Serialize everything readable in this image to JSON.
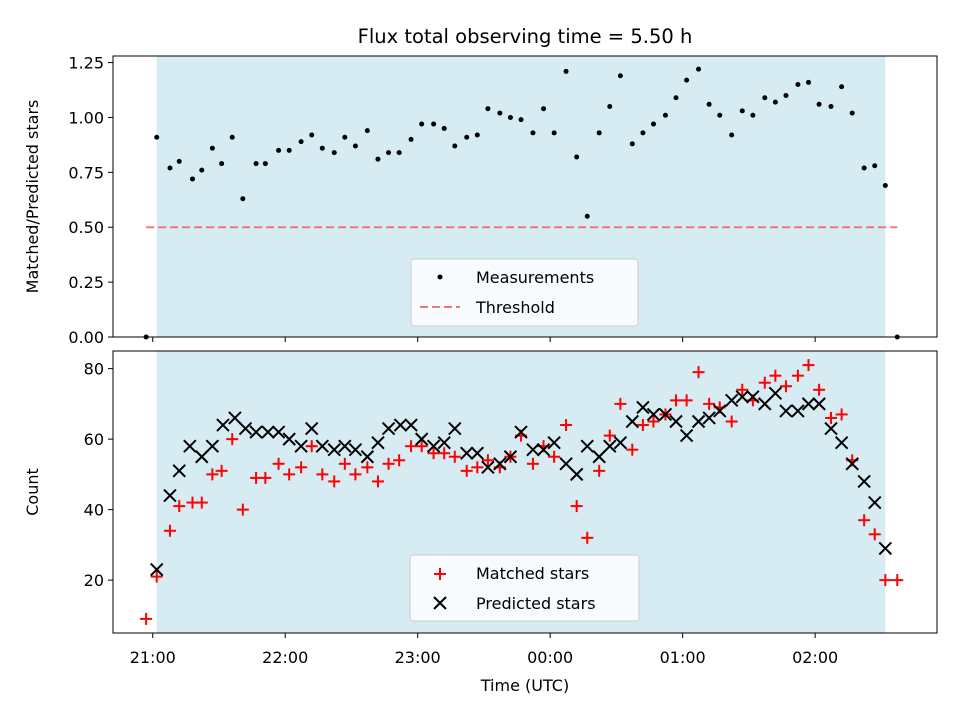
{
  "title": "Flux total observing time = 5.50 h",
  "chart_data": [
    {
      "type": "scatter",
      "ylabel": "Matched/Predicted stars",
      "ylim": [
        0,
        1.28
      ],
      "yticks": [
        0,
        0.25,
        0.5,
        0.75,
        1.0,
        1.25
      ],
      "yticklabels": [
        "0.00",
        "0.25",
        "0.50",
        "0.75",
        "1.00",
        "1.25"
      ],
      "xlim": [
        -0.3,
        5.92
      ],
      "xticks": [
        0,
        1,
        2,
        3,
        4,
        5
      ],
      "shaded_span": [
        0.03,
        5.53
      ],
      "legend_position": "lower center",
      "series": [
        {
          "name": "Measurements",
          "marker": "dot",
          "color": "#000000",
          "x": [
            -0.05,
            0.03,
            0.13,
            0.2,
            0.3,
            0.37,
            0.45,
            0.52,
            0.6,
            0.68,
            0.78,
            0.85,
            0.95,
            1.03,
            1.12,
            1.2,
            1.28,
            1.37,
            1.45,
            1.53,
            1.62,
            1.7,
            1.78,
            1.86,
            1.95,
            2.03,
            2.12,
            2.2,
            2.28,
            2.37,
            2.45,
            2.53,
            2.62,
            2.7,
            2.78,
            2.87,
            2.95,
            3.03,
            3.12,
            3.2,
            3.28,
            3.37,
            3.45,
            3.53,
            3.62,
            3.7,
            3.78,
            3.87,
            3.95,
            4.03,
            4.12,
            4.2,
            4.28,
            4.37,
            4.45,
            4.53,
            4.62,
            4.7,
            4.78,
            4.87,
            4.95,
            5.03,
            5.12,
            5.2,
            5.28,
            5.37,
            5.45,
            5.53,
            5.62
          ],
          "y": [
            0.0,
            0.91,
            0.77,
            0.8,
            0.72,
            0.76,
            0.86,
            0.79,
            0.91,
            0.63,
            0.79,
            0.79,
            0.85,
            0.85,
            0.89,
            0.92,
            0.86,
            0.84,
            0.91,
            0.87,
            0.94,
            0.81,
            0.84,
            0.84,
            0.9,
            0.97,
            0.97,
            0.95,
            0.87,
            0.91,
            0.92,
            1.04,
            1.02,
            1.0,
            0.99,
            0.93,
            1.04,
            0.93,
            1.21,
            0.82,
            0.55,
            0.93,
            1.05,
            1.19,
            0.88,
            0.93,
            0.97,
            1.01,
            1.09,
            1.17,
            1.22,
            1.06,
            1.01,
            0.92,
            1.03,
            1.01,
            1.09,
            1.07,
            1.1,
            1.15,
            1.16,
            1.06,
            1.05,
            1.14,
            1.02,
            0.77,
            0.78,
            0.69,
            0.0
          ]
        },
        {
          "name": "Threshold",
          "line": "dashed",
          "color": "#f07878",
          "x": [
            -0.05,
            5.62
          ],
          "y": [
            0.5,
            0.5
          ]
        }
      ]
    },
    {
      "type": "scatter",
      "ylabel": "Count",
      "xlabel": "Time (UTC)",
      "ylim": [
        5,
        85
      ],
      "yticks": [
        20,
        40,
        60,
        80
      ],
      "yticklabels": [
        "20",
        "40",
        "60",
        "80"
      ],
      "xlim": [
        -0.3,
        5.92
      ],
      "xticks": [
        0,
        1,
        2,
        3,
        4,
        5
      ],
      "xticklabels": [
        "21:00",
        "22:00",
        "23:00",
        "00:00",
        "01:00",
        "02:00"
      ],
      "shaded_span": [
        0.03,
        5.53
      ],
      "legend_position": "lower center",
      "series": [
        {
          "name": "Matched stars",
          "marker": "plus",
          "color": "#ff0000",
          "x": [
            -0.05,
            0.03,
            0.13,
            0.2,
            0.3,
            0.37,
            0.45,
            0.52,
            0.6,
            0.68,
            0.78,
            0.85,
            0.95,
            1.03,
            1.12,
            1.2,
            1.28,
            1.37,
            1.45,
            1.53,
            1.62,
            1.7,
            1.78,
            1.86,
            1.95,
            2.03,
            2.12,
            2.2,
            2.28,
            2.37,
            2.45,
            2.53,
            2.62,
            2.7,
            2.78,
            2.87,
            2.95,
            3.03,
            3.12,
            3.2,
            3.28,
            3.37,
            3.45,
            3.53,
            3.62,
            3.7,
            3.78,
            3.87,
            3.95,
            4.03,
            4.12,
            4.2,
            4.28,
            4.37,
            4.45,
            4.53,
            4.62,
            4.7,
            4.78,
            4.87,
            4.95,
            5.03,
            5.12,
            5.2,
            5.28,
            5.37,
            5.45,
            5.53,
            5.62
          ],
          "y": [
            9,
            21,
            34,
            41,
            42,
            42,
            50,
            51,
            60,
            40,
            49,
            49,
            53,
            50,
            52,
            58,
            50,
            48,
            53,
            50,
            52,
            48,
            53,
            54,
            58,
            58,
            56,
            56,
            55,
            51,
            52,
            54,
            52,
            55,
            61,
            53,
            58,
            55,
            64,
            41,
            32,
            51,
            61,
            70,
            57,
            64,
            65,
            67,
            71,
            71,
            79,
            70,
            69,
            65,
            74,
            71,
            76,
            78,
            75,
            78,
            81,
            74,
            66,
            67,
            54,
            37,
            33,
            20,
            20
          ]
        },
        {
          "name": "Predicted stars",
          "marker": "x",
          "color": "#000000",
          "x": [
            0.03,
            0.13,
            0.2,
            0.28,
            0.37,
            0.45,
            0.53,
            0.62,
            0.7,
            0.78,
            0.87,
            0.95,
            1.03,
            1.12,
            1.2,
            1.28,
            1.37,
            1.45,
            1.53,
            1.62,
            1.7,
            1.78,
            1.87,
            1.95,
            2.03,
            2.12,
            2.2,
            2.28,
            2.37,
            2.45,
            2.53,
            2.62,
            2.7,
            2.78,
            2.87,
            2.95,
            3.03,
            3.12,
            3.2,
            3.28,
            3.37,
            3.45,
            3.53,
            3.62,
            3.7,
            3.78,
            3.87,
            3.95,
            4.03,
            4.12,
            4.2,
            4.28,
            4.37,
            4.45,
            4.53,
            4.62,
            4.7,
            4.78,
            4.87,
            4.95,
            5.03,
            5.12,
            5.2,
            5.28,
            5.37,
            5.45,
            5.53
          ],
          "y": [
            23,
            44,
            51,
            58,
            55,
            58,
            64,
            66,
            63,
            62,
            62,
            62,
            60,
            58,
            63,
            58,
            57,
            58,
            57,
            55,
            59,
            63,
            64,
            64,
            60,
            58,
            59,
            63,
            56,
            56,
            52,
            53,
            55,
            62,
            57,
            57,
            59,
            53,
            50,
            58,
            55,
            58,
            59,
            65,
            69,
            67,
            67,
            65,
            61,
            65,
            66,
            68,
            71,
            72,
            72,
            70,
            73,
            68,
            68,
            70,
            70,
            63,
            59,
            53,
            48,
            42,
            29
          ]
        }
      ]
    }
  ]
}
